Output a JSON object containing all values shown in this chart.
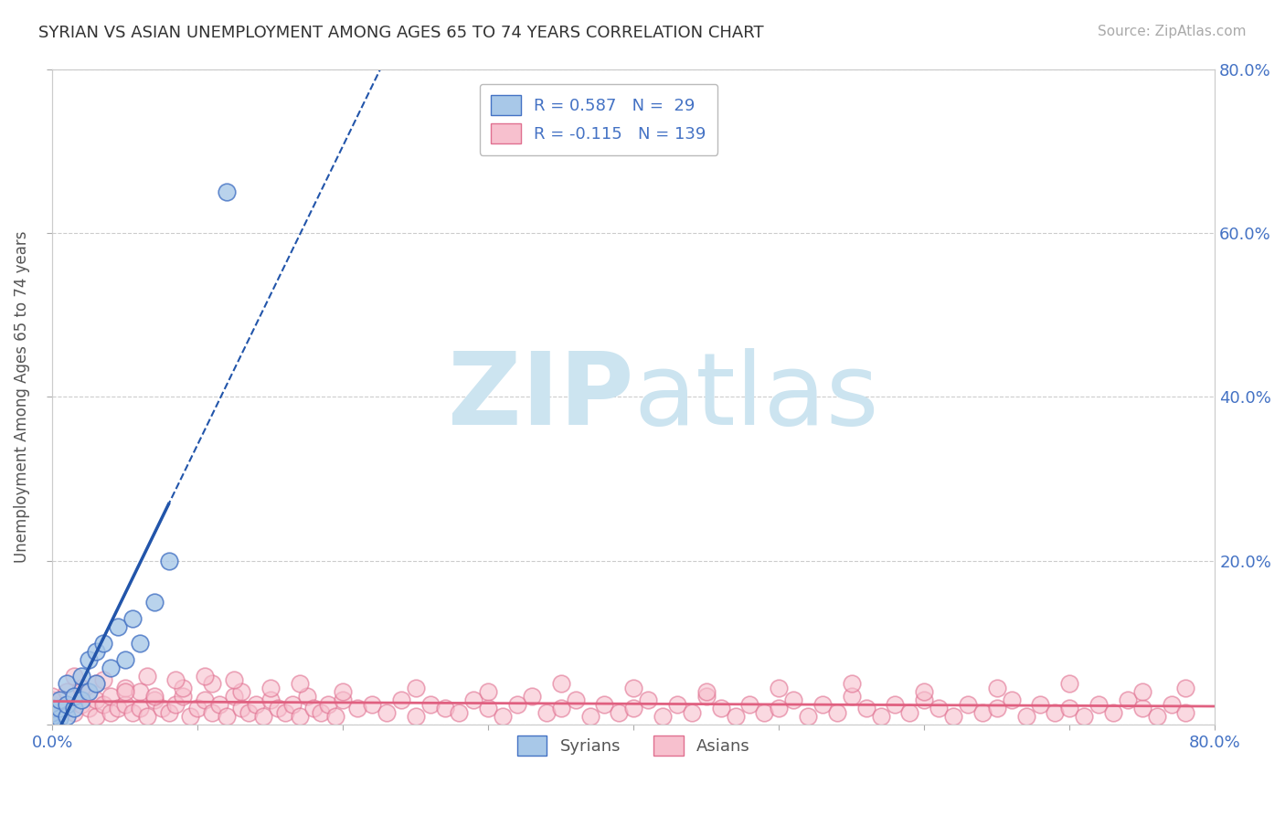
{
  "title": "SYRIAN VS ASIAN UNEMPLOYMENT AMONG AGES 65 TO 74 YEARS CORRELATION CHART",
  "source": "Source: ZipAtlas.com",
  "ylabel": "Unemployment Among Ages 65 to 74 years",
  "xlim": [
    0.0,
    0.8
  ],
  "ylim": [
    0.0,
    0.8
  ],
  "xtick_positions": [
    0.0,
    0.1,
    0.2,
    0.3,
    0.4,
    0.5,
    0.6,
    0.7,
    0.8
  ],
  "ytick_positions": [
    0.0,
    0.2,
    0.4,
    0.6,
    0.8
  ],
  "xticklabels": [
    "0.0%",
    "",
    "",
    "",
    "",
    "",
    "",
    "",
    "80.0%"
  ],
  "yticklabels_right": [
    "",
    "20.0%",
    "40.0%",
    "60.0%",
    "80.0%"
  ],
  "legend_syrian_label": "R = 0.587   N =  29",
  "legend_asian_label": "R = -0.115   N = 139",
  "syrian_fill": "#a8c8e8",
  "syrian_edge": "#4472c4",
  "asian_fill": "#f7c0ce",
  "asian_edge": "#e07090",
  "syrian_line_color": "#2255aa",
  "asian_line_color": "#e06080",
  "label_color": "#4472c4",
  "grid_color": "#cccccc",
  "background": "#ffffff",
  "watermark_zip": "ZIP",
  "watermark_atlas": "atlas",
  "watermark_color": "#cce4f0",
  "figsize": [
    14.06,
    8.92
  ],
  "dpi": 100,
  "syrian_x": [
    0.0,
    0.0,
    0.0,
    0.0,
    0.0,
    0.0,
    0.005,
    0.005,
    0.005,
    0.01,
    0.01,
    0.01,
    0.015,
    0.015,
    0.02,
    0.02,
    0.025,
    0.025,
    0.03,
    0.03,
    0.035,
    0.04,
    0.045,
    0.05,
    0.055,
    0.06,
    0.07,
    0.08,
    0.12
  ],
  "syrian_y": [
    0.0,
    0.003,
    0.005,
    0.01,
    0.015,
    0.02,
    0.008,
    0.02,
    0.03,
    0.01,
    0.025,
    0.05,
    0.02,
    0.035,
    0.03,
    0.06,
    0.04,
    0.08,
    0.05,
    0.09,
    0.1,
    0.07,
    0.12,
    0.08,
    0.13,
    0.1,
    0.15,
    0.2,
    0.65
  ],
  "asian_x": [
    0.0,
    0.0,
    0.0,
    0.0,
    0.0,
    0.0,
    0.0,
    0.0,
    0.01,
    0.01,
    0.015,
    0.02,
    0.02,
    0.025,
    0.03,
    0.03,
    0.035,
    0.04,
    0.04,
    0.045,
    0.05,
    0.05,
    0.055,
    0.06,
    0.06,
    0.065,
    0.07,
    0.075,
    0.08,
    0.085,
    0.09,
    0.095,
    0.1,
    0.105,
    0.11,
    0.115,
    0.12,
    0.125,
    0.13,
    0.135,
    0.14,
    0.145,
    0.15,
    0.155,
    0.16,
    0.165,
    0.17,
    0.175,
    0.18,
    0.185,
    0.19,
    0.195,
    0.2,
    0.21,
    0.22,
    0.23,
    0.24,
    0.25,
    0.26,
    0.27,
    0.28,
    0.29,
    0.3,
    0.31,
    0.32,
    0.33,
    0.34,
    0.35,
    0.36,
    0.37,
    0.38,
    0.39,
    0.4,
    0.41,
    0.42,
    0.43,
    0.44,
    0.45,
    0.46,
    0.47,
    0.48,
    0.49,
    0.5,
    0.51,
    0.52,
    0.53,
    0.54,
    0.55,
    0.56,
    0.57,
    0.58,
    0.59,
    0.6,
    0.61,
    0.62,
    0.63,
    0.64,
    0.65,
    0.66,
    0.67,
    0.68,
    0.69,
    0.7,
    0.71,
    0.72,
    0.73,
    0.74,
    0.75,
    0.76,
    0.77,
    0.78,
    0.02,
    0.03,
    0.05,
    0.07,
    0.09,
    0.11,
    0.13,
    0.15,
    0.17,
    0.2,
    0.25,
    0.3,
    0.35,
    0.4,
    0.45,
    0.5,
    0.55,
    0.6,
    0.65,
    0.7,
    0.75,
    0.78,
    0.015,
    0.035,
    0.065,
    0.085,
    0.105,
    0.125
  ],
  "asian_y": [
    0.015,
    0.025,
    0.01,
    0.03,
    0.02,
    0.035,
    0.008,
    0.018,
    0.02,
    0.04,
    0.015,
    0.025,
    0.045,
    0.02,
    0.01,
    0.03,
    0.025,
    0.015,
    0.035,
    0.02,
    0.025,
    0.045,
    0.015,
    0.02,
    0.04,
    0.01,
    0.03,
    0.02,
    0.015,
    0.025,
    0.035,
    0.01,
    0.02,
    0.03,
    0.015,
    0.025,
    0.01,
    0.035,
    0.02,
    0.015,
    0.025,
    0.01,
    0.03,
    0.02,
    0.015,
    0.025,
    0.01,
    0.035,
    0.02,
    0.015,
    0.025,
    0.01,
    0.03,
    0.02,
    0.025,
    0.015,
    0.03,
    0.01,
    0.025,
    0.02,
    0.015,
    0.03,
    0.02,
    0.01,
    0.025,
    0.035,
    0.015,
    0.02,
    0.03,
    0.01,
    0.025,
    0.015,
    0.02,
    0.03,
    0.01,
    0.025,
    0.015,
    0.035,
    0.02,
    0.01,
    0.025,
    0.015,
    0.02,
    0.03,
    0.01,
    0.025,
    0.015,
    0.035,
    0.02,
    0.01,
    0.025,
    0.015,
    0.03,
    0.02,
    0.01,
    0.025,
    0.015,
    0.02,
    0.03,
    0.01,
    0.025,
    0.015,
    0.02,
    0.01,
    0.025,
    0.015,
    0.03,
    0.02,
    0.01,
    0.025,
    0.015,
    0.045,
    0.05,
    0.04,
    0.035,
    0.045,
    0.05,
    0.04,
    0.045,
    0.05,
    0.04,
    0.045,
    0.04,
    0.05,
    0.045,
    0.04,
    0.045,
    0.05,
    0.04,
    0.045,
    0.05,
    0.04,
    0.045,
    0.06,
    0.055,
    0.06,
    0.055,
    0.06,
    0.055
  ]
}
